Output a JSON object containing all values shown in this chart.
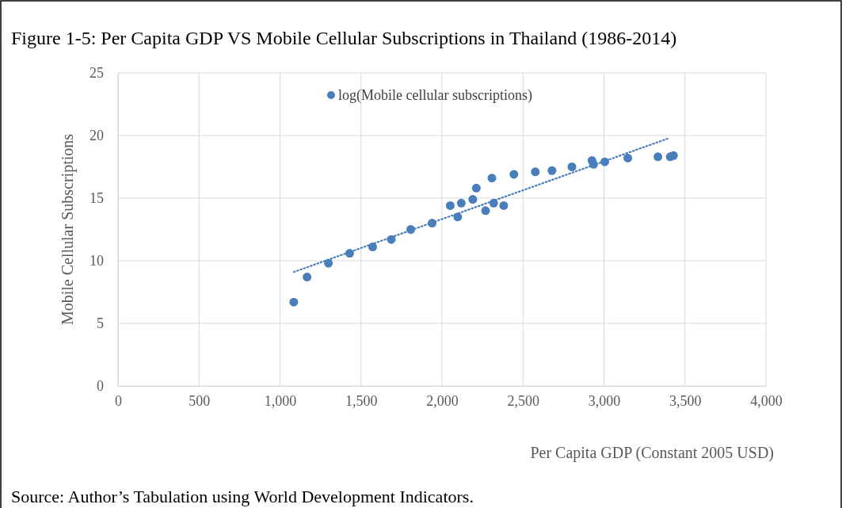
{
  "chart_data": {
    "type": "scatter",
    "title": "Figure 1-5: Per Capita GDP VS Mobile Cellular Subscriptions in Thailand (1986-2014)",
    "xlabel": "Per Capita GDP (Constant 2005 USD)",
    "ylabel": "Mobile Cellular Subscriptions",
    "annotations": [
      "Source: Author’s Tabulation using World Development Indicators."
    ],
    "xlim": [
      0,
      4000
    ],
    "xticks": [
      0,
      {
        "value": 500,
        "label": "500"
      },
      {
        "value": 1000,
        "label": "1,000"
      },
      {
        "value": 1500,
        "label": "1,500"
      },
      {
        "value": 2000,
        "label": "2,000"
      },
      {
        "value": 2500,
        "label": "2,500"
      },
      {
        "value": 3000,
        "label": "3,000"
      },
      {
        "value": 3500,
        "label": "3,500"
      },
      {
        "value": 4000,
        "label": "4,000"
      }
    ],
    "ylim": [
      0,
      25
    ],
    "yticks": [
      0,
      5,
      10,
      15,
      20,
      25
    ],
    "grid": true,
    "legend": "top",
    "marker": "circle",
    "series": [
      {
        "name": "log(Mobile cellular subscriptions)",
        "color": "#4a7ebb",
        "x": [
          1085,
          1167,
          1299,
          1430,
          1572,
          1687,
          1807,
          1939,
          2051,
          2097,
          2119,
          2190,
          2212,
          2269,
          2308,
          2319,
          2381,
          2444,
          2576,
          2679,
          2802,
          2926,
          2936,
          3005,
          3147,
          3333,
          3409,
          3429
        ],
        "values": [
          6.7,
          8.7,
          9.8,
          10.6,
          11.1,
          11.7,
          12.5,
          13.0,
          14.4,
          13.5,
          14.6,
          14.9,
          15.8,
          14.0,
          16.6,
          14.6,
          14.4,
          16.9,
          17.1,
          17.2,
          17.5,
          18.0,
          17.7,
          17.9,
          18.2,
          18.3,
          18.3,
          18.4
        ]
      },
      {
        "type": "line",
        "color": "#4a7ebb",
        "line_style": "dotted",
        "marker": "none",
        "x": [
          1085,
          3404
        ],
        "values": [
          9.1,
          19.8
        ]
      }
    ]
  }
}
